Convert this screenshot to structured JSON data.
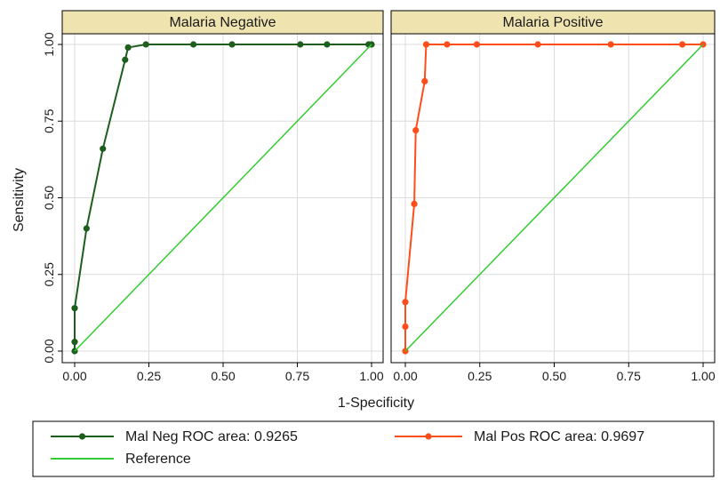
{
  "chart_data": {
    "type": "line",
    "xlabel": "1-Specificity",
    "ylabel": "Sensitivity",
    "xlim": [
      0,
      1
    ],
    "ylim": [
      0,
      1
    ],
    "ticks": [
      "0.00",
      "0.25",
      "0.50",
      "0.75",
      "1.00"
    ],
    "tick_values": [
      0,
      0.25,
      0.5,
      0.75,
      1
    ],
    "grid": true,
    "legend_position": "bottom",
    "colors": {
      "neg": "#1d5e1d",
      "pos": "#ff4d1a",
      "reference": "#33cc33",
      "strip": "#efe4b0"
    },
    "panels": [
      {
        "title": "Malaria Negative",
        "series": [
          {
            "name": "Mal Neg ROC area: 0.9265",
            "key": "neg",
            "x": [
              0,
              0,
              0,
              0.04,
              0.095,
              0.17,
              0.18,
              0.24,
              0.4,
              0.53,
              0.76,
              0.85,
              0.99,
              1.0
            ],
            "y": [
              0,
              0.03,
              0.14,
              0.4,
              0.66,
              0.95,
              0.99,
              1.0,
              1.0,
              1.0,
              1.0,
              1.0,
              1.0,
              1.0
            ]
          },
          {
            "name": "Reference",
            "key": "reference",
            "x": [
              0,
              1
            ],
            "y": [
              0,
              1
            ]
          }
        ]
      },
      {
        "title": "Malaria Positive",
        "series": [
          {
            "name": "Mal Pos ROC area: 0.9697",
            "key": "pos",
            "x": [
              0,
              0,
              0,
              0.03,
              0.035,
              0.065,
              0.07,
              0.14,
              0.24,
              0.445,
              0.69,
              0.93,
              1.0
            ],
            "y": [
              0,
              0.08,
              0.16,
              0.48,
              0.72,
              0.88,
              1.0,
              1.0,
              1.0,
              1.0,
              1.0,
              1.0,
              1.0
            ]
          },
          {
            "name": "Reference",
            "key": "reference",
            "x": [
              0,
              1
            ],
            "y": [
              0,
              1
            ]
          }
        ]
      }
    ],
    "legend": [
      {
        "label": "Mal Neg ROC area: 0.9265",
        "key": "neg",
        "marker": true
      },
      {
        "label": "Mal Pos ROC area: 0.9697",
        "key": "pos",
        "marker": true
      },
      {
        "label": "Reference",
        "key": "reference",
        "marker": false
      }
    ]
  }
}
